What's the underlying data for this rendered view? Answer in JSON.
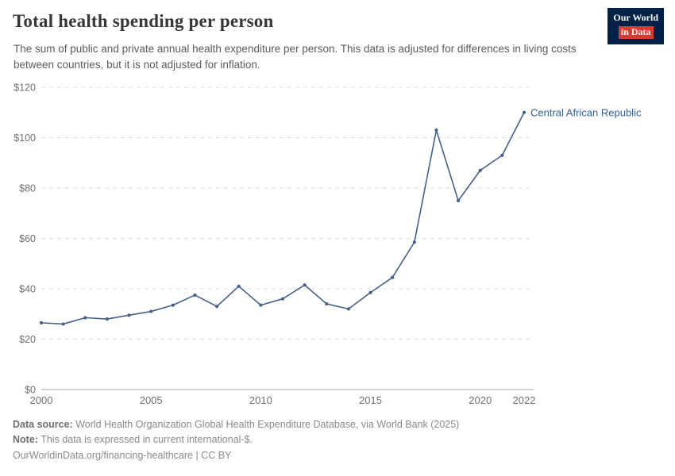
{
  "header": {
    "title": "Total health spending per person",
    "subtitle": "The sum of public and private annual health expenditure per person. This data is adjusted for differences in living costs between countries, but it is not adjusted for inflation.",
    "logo": {
      "line1": "Our World",
      "line2": "in Data"
    }
  },
  "chart_data": {
    "type": "line",
    "title": "Total health spending per person",
    "xlabel": "",
    "ylabel": "",
    "xlim": [
      2000,
      2022
    ],
    "ylim": [
      0,
      120
    ],
    "grid": true,
    "xticks": [
      2000,
      2005,
      2010,
      2015,
      2020,
      2022
    ],
    "yticks": [
      0,
      20,
      40,
      60,
      80,
      100,
      120
    ],
    "ytick_prefix": "$",
    "legend_position": "end-of-line-label",
    "label_color": "#3360a1",
    "series": [
      {
        "name": "Central African Republic",
        "color": "#44618c",
        "x": [
          2000,
          2001,
          2002,
          2003,
          2004,
          2005,
          2006,
          2007,
          2008,
          2009,
          2010,
          2011,
          2012,
          2013,
          2014,
          2015,
          2016,
          2017,
          2018,
          2019,
          2020,
          2021,
          2022
        ],
        "values": [
          26.5,
          26,
          28.5,
          28,
          29.5,
          31,
          33.5,
          37.5,
          33,
          41,
          33.5,
          36,
          41.5,
          34,
          32,
          38.5,
          44.5,
          58.5,
          103,
          75,
          87,
          93,
          110
        ]
      }
    ]
  },
  "footer": {
    "source_label": "Data source:",
    "source_text": " World Health Organization Global Health Expenditure Database, via World Bank (2025)",
    "note_label": "Note:",
    "note_text": " This data is expressed in current international-$.",
    "link_text": "OurWorldinData.org/financing-healthcare | CC BY"
  }
}
